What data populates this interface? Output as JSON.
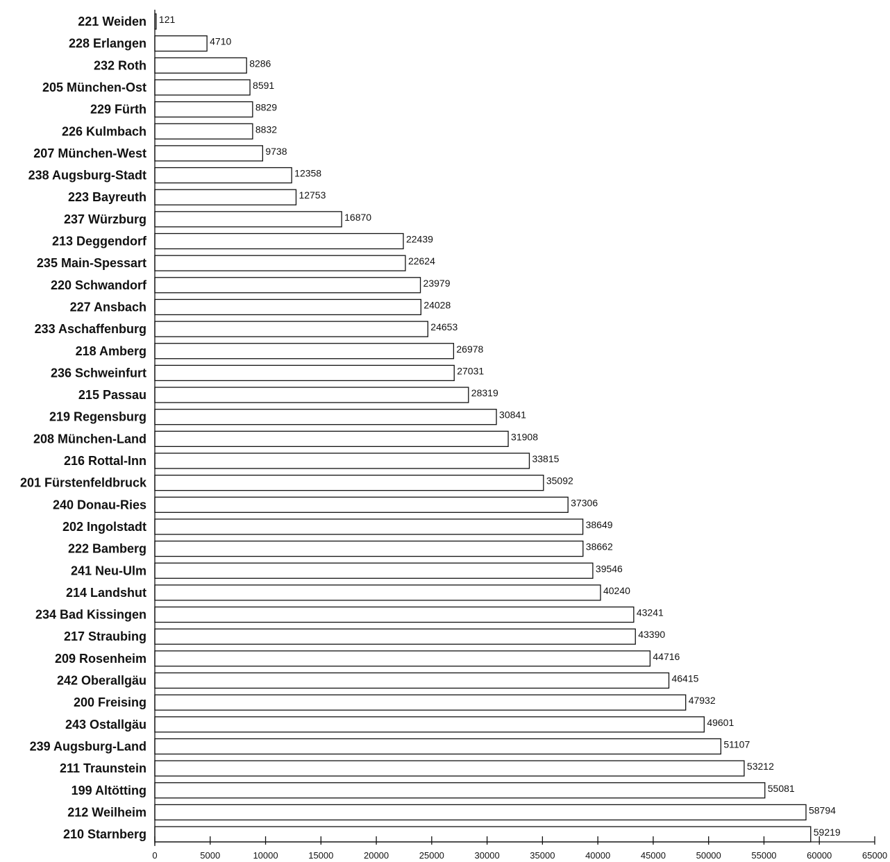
{
  "chart_data": {
    "type": "bar",
    "orientation": "horizontal",
    "categories": [
      "221 Weiden",
      "228 Erlangen",
      "232 Roth",
      "205 München-Ost",
      "229 Fürth",
      "226 Kulmbach",
      "207 München-West",
      "238 Augsburg-Stadt",
      "223 Bayreuth",
      "237 Würzburg",
      "213 Deggendorf",
      "235 Main-Spessart",
      "220 Schwandorf",
      "227 Ansbach",
      "233 Aschaffenburg",
      "218 Amberg",
      "236 Schweinfurt",
      "215 Passau",
      "219 Regensburg",
      "208 München-Land",
      "216 Rottal-Inn",
      "201 Fürstenfeldbruck",
      "240 Donau-Ries",
      "202 Ingolstadt",
      "222 Bamberg",
      "241 Neu-Ulm",
      "214 Landshut",
      "234 Bad Kissingen",
      "217 Straubing",
      "209 Rosenheim",
      "242 Oberallgäu",
      "200 Freising",
      "243 Ostallgäu",
      "239 Augsburg-Land",
      "211 Traunstein",
      "199 Altötting",
      "212 Weilheim",
      "210 Starnberg"
    ],
    "values": [
      121,
      4710,
      8286,
      8591,
      8829,
      8832,
      9738,
      12358,
      12753,
      16870,
      22439,
      22624,
      23979,
      24028,
      24653,
      26978,
      27031,
      28319,
      30841,
      31908,
      33815,
      35092,
      37306,
      38649,
      38662,
      39546,
      40240,
      43241,
      43390,
      44716,
      46415,
      47932,
      49601,
      51107,
      53212,
      55081,
      58794,
      59219
    ],
    "value_labels": [
      "121",
      "4710",
      "8286",
      "8591",
      "8829",
      "8832",
      "9738",
      "12358",
      "12753",
      "16870",
      "22439",
      "22624",
      "23979",
      "24028",
      "24653",
      "26978",
      "27031",
      "28319",
      "30841",
      "31908",
      "33815",
      "35092",
      "37306",
      "38649",
      "38662",
      "39546",
      "40240",
      "43241",
      "43390",
      "44716",
      "46415",
      "47932",
      "49601",
      "51107",
      "53212",
      "55081",
      "58794",
      "59219"
    ],
    "xlim": [
      0,
      65000
    ],
    "xticks": [
      0,
      5000,
      10000,
      15000,
      20000,
      25000,
      30000,
      35000,
      40000,
      45000,
      50000,
      55000,
      60000,
      65000
    ],
    "xtick_labels": [
      "0",
      "5000",
      "10000",
      "15000",
      "20000",
      "25000",
      "30000",
      "35000",
      "40000",
      "45000",
      "50000",
      "55000",
      "60000",
      "65000"
    ],
    "title": "",
    "xlabel": "",
    "ylabel": "",
    "grid": false,
    "legend": "none",
    "colors": {
      "bar_fill": "#ffffff",
      "bar_stroke": "#111111",
      "text": "#111111"
    }
  }
}
